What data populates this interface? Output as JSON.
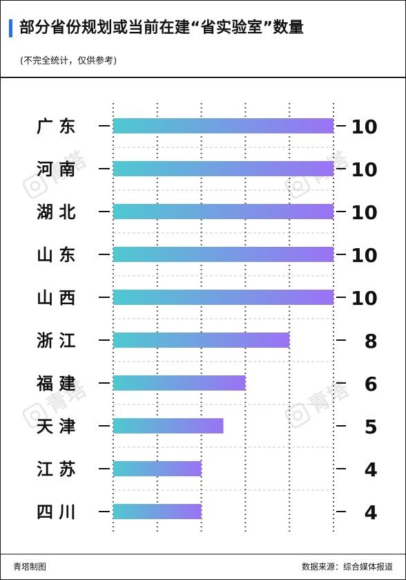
{
  "header": {
    "title": "部分省份规划或当前在建“省实验室”数量",
    "subtitle": "(不完全统计，仅供参考)"
  },
  "footer": {
    "left": "青塔制图",
    "right": "数据来源：综合媒体报道"
  },
  "watermark": {
    "text": "青塔"
  },
  "colors": {
    "accent": "#2a6ff3",
    "bar_start": "#4ec9d0",
    "bar_end": "#9b72f5",
    "grid": "#555555",
    "row_line": "#c9c9c9"
  },
  "chart_data": {
    "type": "bar",
    "orientation": "horizontal",
    "categories": [
      "广 东",
      "河 南",
      "湖 北",
      "山 东",
      "山 西",
      "浙 江",
      "福 建",
      "天 津",
      "江 苏",
      "四 川"
    ],
    "values": [
      10,
      10,
      10,
      10,
      10,
      8,
      6,
      5,
      4,
      4
    ],
    "xlim": [
      0,
      10
    ],
    "grid": true,
    "title": "部分省份规划或当前在建“省实验室”数量"
  }
}
